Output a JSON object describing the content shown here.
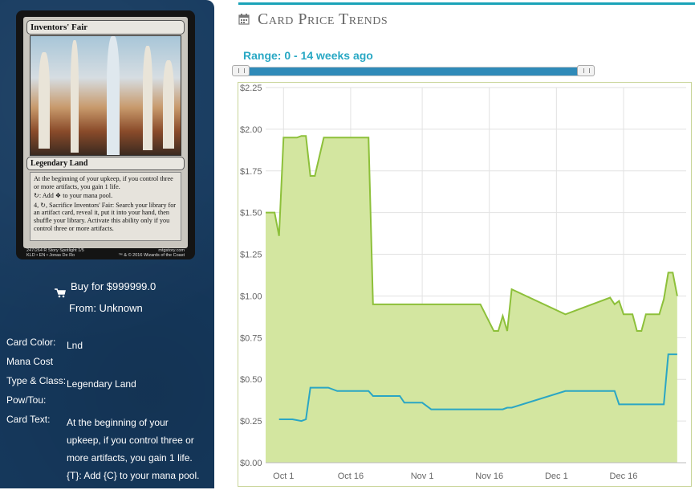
{
  "card": {
    "name": "Inventors' Fair",
    "type_line": "Legendary Land",
    "rules_text": [
      "At the beginning of your upkeep, if you control three or more artifacts, you gain 1 life.",
      "↻: Add ❖ to your mana pool.",
      "4, ↻, Sacrifice Inventors' Fair: Search your library for an artifact card, reveal it, put it into your hand, then shuffle your library. Activate this ability only if you control three or more artifacts."
    ],
    "footer_left": "247/264 R Story Spotlight 1/5",
    "footer_left2": "KLD • EN • Jonas De Ro",
    "footer_right": "mtgstory.com",
    "footer_right2": "™ & © 2016 Wizards of the Coast"
  },
  "buy": {
    "label": "Buy for $999999.0",
    "from": "From: Unknown"
  },
  "details": [
    {
      "key": "Card Color:",
      "value": "Lnd"
    },
    {
      "key": "Mana Cost",
      "value": ""
    },
    {
      "key": "Type & Class:",
      "value": "Legendary Land"
    },
    {
      "key": "Pow/Tou:",
      "value": ""
    },
    {
      "key": "Card Text:",
      "value": "At the beginning of your upkeep, if you control three or more artifacts, you gain 1 life. {T}: Add {C} to your mana pool."
    }
  ],
  "header": {
    "title": "Card Price Trends"
  },
  "range": {
    "label": "Range: 0 - 14 weeks ago"
  },
  "colors": {
    "high_line": "#8dc03a",
    "high_fill": "#d3e6a0",
    "low_line": "#2aa6c4",
    "accent": "#1aa3b8",
    "sidebar": "#163a5f"
  },
  "chart_data": {
    "type": "area",
    "title": "",
    "xlabel": "",
    "ylabel": "",
    "ylim": [
      0,
      2.25
    ],
    "yticks": [
      "$0.00",
      "$0.25",
      "$0.50",
      "$0.75",
      "$1.00",
      "$1.25",
      "$1.50",
      "$1.75",
      "$2.00",
      "$2.25"
    ],
    "xlim": [
      "2016-09-27",
      "2016-12-30"
    ],
    "xticks": [
      {
        "label": "Oct 1",
        "date": "2016-10-01"
      },
      {
        "label": "Oct 16",
        "date": "2016-10-16"
      },
      {
        "label": "Nov 1",
        "date": "2016-11-01"
      },
      {
        "label": "Nov 16",
        "date": "2016-11-16"
      },
      {
        "label": "Dec 1",
        "date": "2016-12-01"
      },
      {
        "label": "Dec 16",
        "date": "2016-12-16"
      }
    ],
    "grid": true,
    "series": [
      {
        "points": [
          [
            "2016-09-27",
            1.5
          ],
          [
            "2016-09-29",
            1.5
          ],
          [
            "2016-09-30",
            1.36
          ],
          [
            "2016-10-01",
            1.95
          ],
          [
            "2016-10-04",
            1.95
          ],
          [
            "2016-10-05",
            1.96
          ],
          [
            "2016-10-06",
            1.96
          ],
          [
            "2016-10-07",
            1.72
          ],
          [
            "2016-10-08",
            1.72
          ],
          [
            "2016-10-10",
            1.95
          ],
          [
            "2016-10-20",
            1.95
          ],
          [
            "2016-10-21",
            0.95
          ],
          [
            "2016-11-14",
            0.95
          ],
          [
            "2016-11-17",
            0.79
          ],
          [
            "2016-11-18",
            0.79
          ],
          [
            "2016-11-19",
            0.88
          ],
          [
            "2016-11-20",
            0.79
          ],
          [
            "2016-11-21",
            1.04
          ],
          [
            "2016-12-03",
            0.89
          ],
          [
            "2016-12-13",
            0.99
          ],
          [
            "2016-12-14",
            0.95
          ],
          [
            "2016-12-15",
            0.97
          ],
          [
            "2016-12-16",
            0.89
          ],
          [
            "2016-12-18",
            0.89
          ],
          [
            "2016-12-19",
            0.79
          ],
          [
            "2016-12-20",
            0.79
          ],
          [
            "2016-12-21",
            0.89
          ],
          [
            "2016-12-24",
            0.89
          ],
          [
            "2016-12-25",
            0.98
          ],
          [
            "2016-12-26",
            1.14
          ],
          [
            "2016-12-27",
            1.14
          ],
          [
            "2016-12-28",
            1.0
          ]
        ]
      },
      {
        "points": [
          [
            "2016-09-30",
            0.26
          ],
          [
            "2016-10-03",
            0.26
          ],
          [
            "2016-10-05",
            0.25
          ],
          [
            "2016-10-06",
            0.26
          ],
          [
            "2016-10-07",
            0.45
          ],
          [
            "2016-10-11",
            0.45
          ],
          [
            "2016-10-13",
            0.43
          ],
          [
            "2016-10-20",
            0.43
          ],
          [
            "2016-10-21",
            0.4
          ],
          [
            "2016-10-27",
            0.4
          ],
          [
            "2016-10-28",
            0.36
          ],
          [
            "2016-11-01",
            0.36
          ],
          [
            "2016-11-03",
            0.32
          ],
          [
            "2016-11-19",
            0.32
          ],
          [
            "2016-11-20",
            0.33
          ],
          [
            "2016-11-21",
            0.33
          ],
          [
            "2016-12-03",
            0.43
          ],
          [
            "2016-12-14",
            0.43
          ],
          [
            "2016-12-15",
            0.35
          ],
          [
            "2016-12-25",
            0.35
          ],
          [
            "2016-12-26",
            0.65
          ],
          [
            "2016-12-28",
            0.65
          ]
        ]
      }
    ]
  }
}
